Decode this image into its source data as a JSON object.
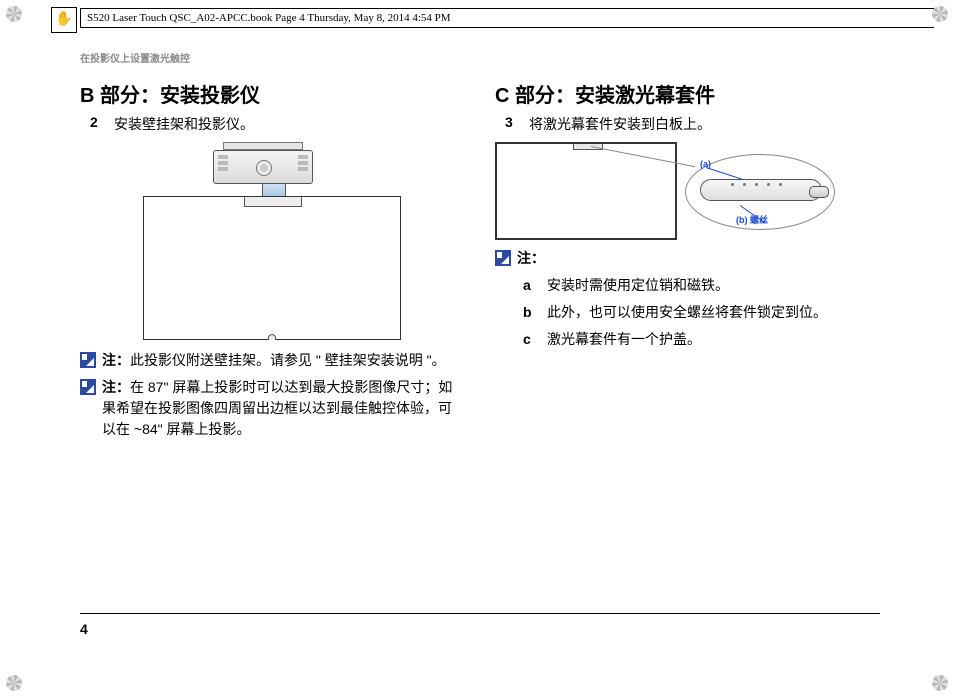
{
  "framemaker_header": "S520 Laser Touch QSC_A02-APCC.book  Page 4  Thursday, May 8, 2014  4:54 PM",
  "running_head": "在投影仪上设置激光触控",
  "page_number": "4",
  "left": {
    "title": "B 部分：安装投影仪",
    "step_num": "2",
    "step_text": "安装壁挂架和投影仪。",
    "note1_label": "注：",
    "note1_text": "此投影仪附送壁挂架。请参见 \" 壁挂架安装说明 \"。",
    "note2_label": "注：",
    "note2_text": "在 87\" 屏幕上投影时可以达到最大投影图像尺寸；如果希望在投影图像四周留出边框以达到最佳触控体验，可以在 ~84\" 屏幕上投影。"
  },
  "right": {
    "title": "C 部分：安装激光幕套件",
    "step_num": "3",
    "step_text": "将激光幕套件安装到白板上。",
    "kit_label_a": "(a)",
    "kit_label_b": "(b) 螺丝",
    "note_label": "注：",
    "items": [
      {
        "k": "a",
        "t": "安装时需使用定位销和磁铁。"
      },
      {
        "k": "b",
        "t": "此外，也可以使用安全螺丝将套件锁定到位。"
      },
      {
        "k": "c",
        "t": "激光幕套件有一个护盖。"
      }
    ]
  },
  "colors": {
    "callout_blue": "#1b49d3",
    "note_icon_bg": "#2b4aa0",
    "running_head_gray": "#8a8a8a"
  }
}
